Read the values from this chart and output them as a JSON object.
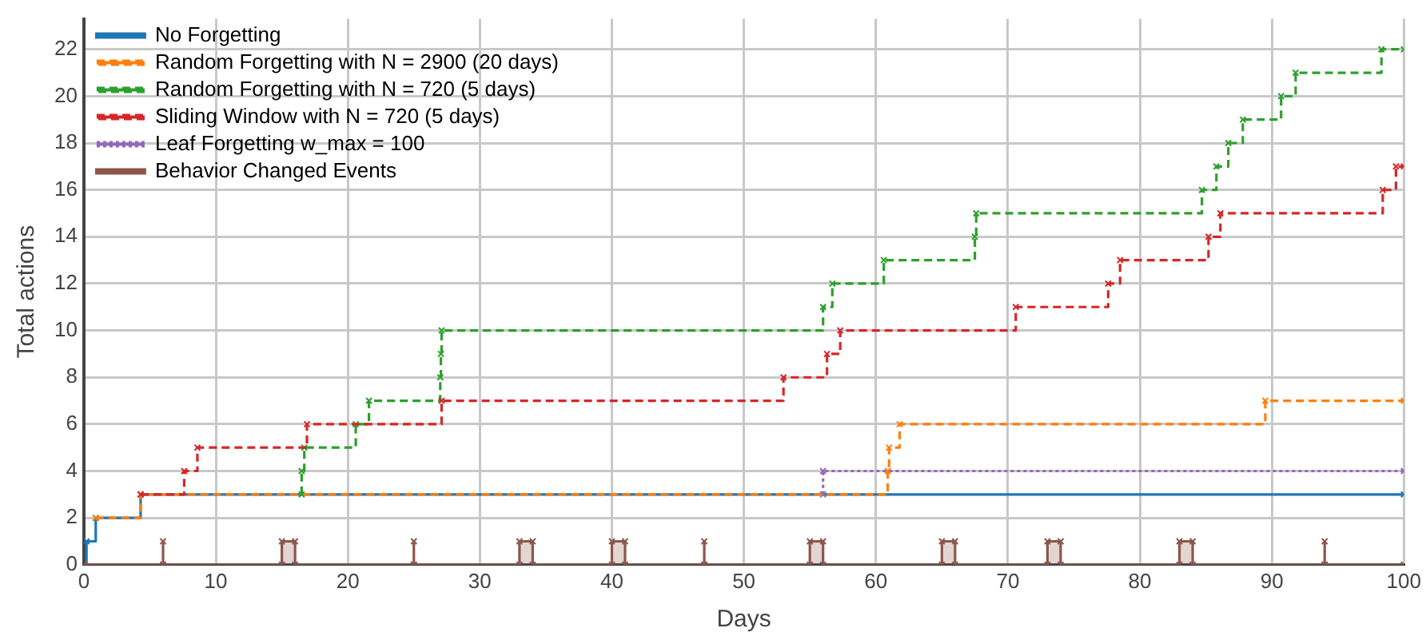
{
  "chart_data": {
    "type": "step",
    "xlabel": "Days",
    "ylabel": "Total actions",
    "xlim": [
      0,
      100
    ],
    "xticks": [
      0,
      10,
      20,
      30,
      40,
      50,
      60,
      70,
      80,
      90,
      100
    ],
    "ylim": [
      0,
      23.3
    ],
    "yticks": [
      0,
      2,
      4,
      6,
      8,
      10,
      12,
      14,
      16,
      18,
      20,
      22
    ],
    "grid": true,
    "legend": "top left",
    "marker": "cross",
    "series": [
      {
        "name": "No Forgetting",
        "color": "#1f77b4",
        "line_style": "solid",
        "x": [
          0,
          0.2,
          0.9,
          4.3,
          100
        ],
        "values": [
          0,
          1,
          2,
          3,
          3
        ]
      },
      {
        "name": "Random Forgetting with N = 2900 (20 days)",
        "color": "#ff7f0e",
        "line_style": "dashed",
        "x": [
          0.9,
          4.3,
          60.9,
          61,
          61.8,
          89.5,
          100
        ],
        "values": [
          2,
          3,
          4,
          5,
          6,
          7,
          7
        ]
      },
      {
        "name": "Random Forgetting with N = 720 (5 days)",
        "color": "#2ca02c",
        "line_style": "dashed",
        "x": [
          16.5,
          16.5,
          16.7,
          20.6,
          21.6,
          27,
          27.05,
          27.1,
          56,
          56.7,
          60.6,
          67.5,
          67.6,
          84.7,
          85.8,
          86.7,
          87.8,
          90.7,
          91.8,
          98.3,
          100
        ],
        "values": [
          3,
          4,
          5,
          6,
          7,
          8,
          9,
          10,
          11,
          12,
          13,
          14,
          15,
          16,
          17,
          18,
          19,
          20,
          21,
          22,
          22
        ]
      },
      {
        "name": "Sliding Window with N = 720 (5 days)",
        "color": "#d62728",
        "line_style": "dashed",
        "x": [
          4.3,
          7.6,
          8.6,
          16.9,
          27.1,
          53,
          56.3,
          57.3,
          70.6,
          77.6,
          78.5,
          85.2,
          86.1,
          98.4,
          99.4,
          100
        ],
        "values": [
          3,
          4,
          5,
          6,
          7,
          8,
          9,
          10,
          11,
          12,
          13,
          14,
          15,
          16,
          17,
          17
        ]
      },
      {
        "name": "Leaf Forgetting w_max = 100",
        "color": "#9467bd",
        "line_style": "dotted",
        "x": [
          56,
          56,
          100
        ],
        "values": [
          3,
          4,
          4
        ]
      },
      {
        "name": "Behavior Changed Events",
        "type": "area",
        "color": "#8c564b",
        "line_style": "solid",
        "x": [
          0,
          6,
          6,
          6,
          15,
          15,
          16,
          16,
          25,
          25,
          25,
          33,
          33,
          34,
          34,
          40,
          40,
          41,
          41,
          47,
          47,
          47,
          55,
          55,
          56,
          56,
          65,
          65,
          66,
          66,
          73,
          73,
          74,
          74,
          83,
          83,
          84,
          84,
          94,
          94,
          94,
          100
        ],
        "values": [
          0,
          0,
          1,
          0,
          0,
          1,
          1,
          0,
          0,
          1,
          0,
          0,
          1,
          1,
          0,
          0,
          1,
          1,
          0,
          0,
          1,
          0,
          0,
          1,
          1,
          0,
          0,
          1,
          1,
          0,
          0,
          1,
          1,
          0,
          0,
          1,
          1,
          0,
          0,
          1,
          0,
          0
        ]
      }
    ]
  }
}
